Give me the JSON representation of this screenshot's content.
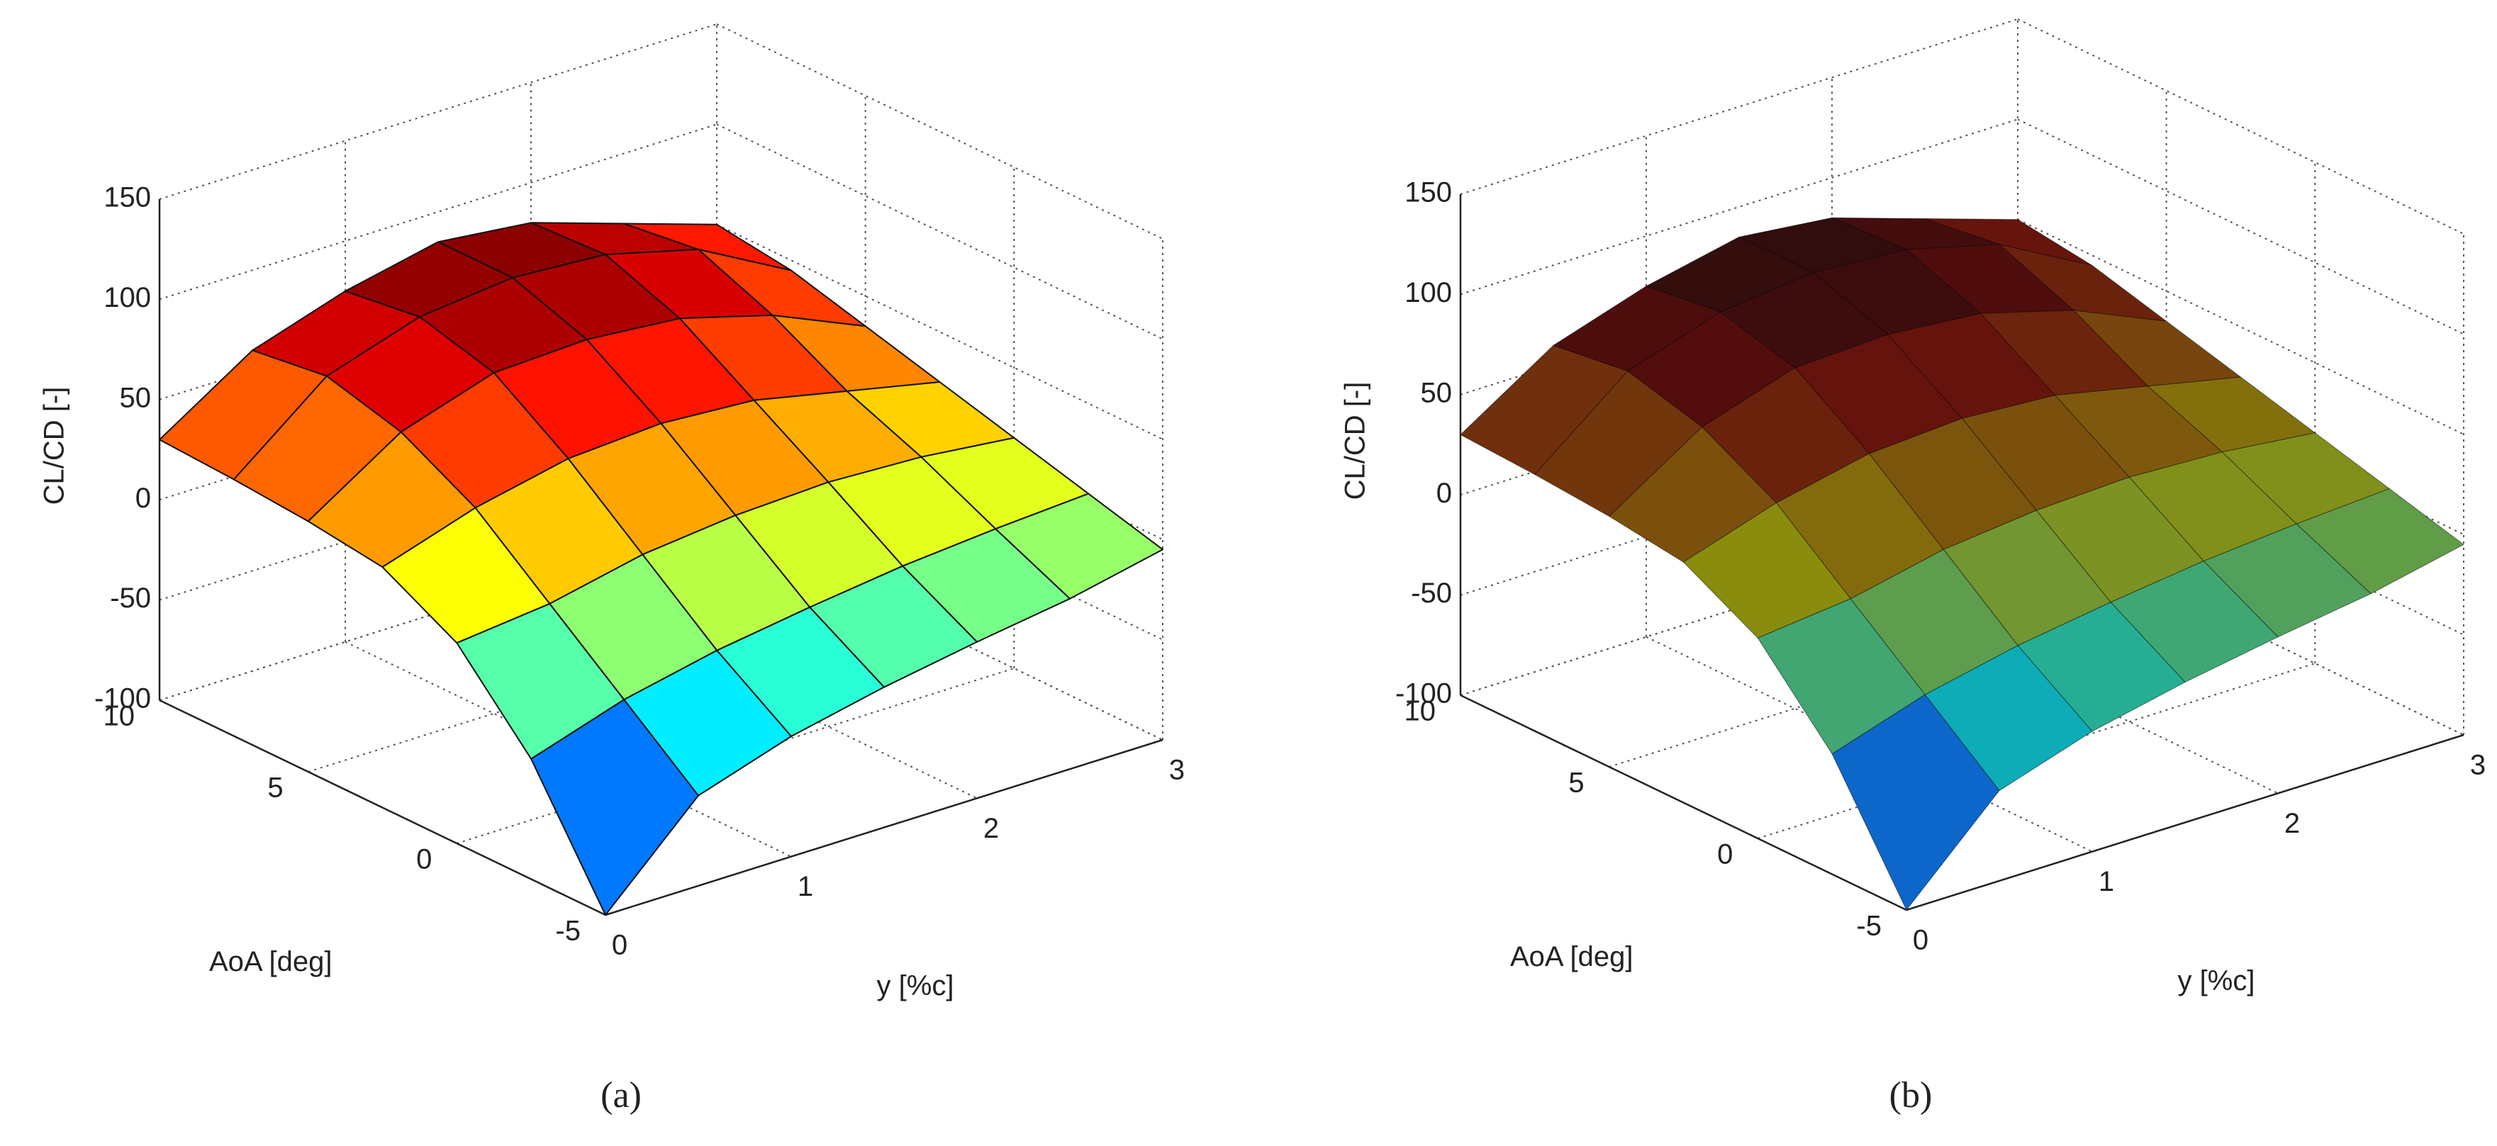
{
  "chart_data": [
    {
      "type": "surface",
      "caption": "(a)",
      "shading": "faceted",
      "colormap": "jet",
      "xlabel": "y  [%c]",
      "ylabel": "AoA  [deg]",
      "zlabel": "CL/CD [-]",
      "x": [
        0,
        0.5,
        1,
        1.5,
        2,
        2.5,
        3
      ],
      "y": [
        -5,
        -2.5,
        0,
        2.5,
        5,
        7.5,
        10
      ],
      "z": [
        [
          -100,
          -55,
          -40,
          -30,
          -22,
          -15,
          -5
        ],
        [
          -40,
          -25,
          -15,
          -8,
          -2,
          2,
          5
        ],
        [
          0,
          5,
          15,
          20,
          22,
          20,
          15
        ],
        [
          20,
          35,
          45,
          48,
          45,
          35,
          25
        ],
        [
          25,
          55,
          70,
          72,
          68,
          55,
          35
        ],
        [
          28,
          65,
          80,
          85,
          82,
          70,
          45
        ],
        [
          30,
          60,
          75,
          85,
          80,
          65,
          50
        ]
      ],
      "xlim": [
        0,
        3
      ],
      "ylim": [
        -5,
        10
      ],
      "zlim": [
        -100,
        150
      ],
      "xticks": [
        0,
        1,
        2,
        3
      ],
      "yticks": [
        -5,
        0,
        5,
        10
      ],
      "zticks": [
        -100,
        -50,
        0,
        50,
        100,
        150
      ],
      "grid": true
    },
    {
      "type": "surface",
      "caption": "(b)",
      "shading": "dark",
      "colormap": "jet",
      "xlabel": "y  [%c]",
      "ylabel": "AoA  [deg]",
      "zlabel": "CL/CD [-]",
      "x": [
        0,
        0.5,
        1,
        1.5,
        2,
        2.5,
        3
      ],
      "y": [
        -5,
        -2.5,
        0,
        2.5,
        5,
        7.5,
        10
      ],
      "z": [
        [
          -100,
          -55,
          -40,
          -30,
          -22,
          -15,
          -5
        ],
        [
          -40,
          -25,
          -15,
          -8,
          -2,
          2,
          5
        ],
        [
          0,
          5,
          15,
          20,
          22,
          20,
          15
        ],
        [
          20,
          35,
          45,
          48,
          45,
          35,
          25
        ],
        [
          25,
          55,
          70,
          72,
          68,
          55,
          35
        ],
        [
          28,
          65,
          80,
          85,
          82,
          70,
          45
        ],
        [
          30,
          60,
          75,
          85,
          80,
          65,
          50
        ]
      ],
      "xlim": [
        0,
        3
      ],
      "ylim": [
        -5,
        10
      ],
      "zlim": [
        -100,
        150
      ],
      "xticks": [
        0,
        1,
        2,
        3
      ],
      "yticks": [
        -5,
        0,
        5,
        10
      ],
      "zticks": [
        -100,
        -50,
        0,
        50,
        100,
        150
      ],
      "grid": true
    }
  ]
}
